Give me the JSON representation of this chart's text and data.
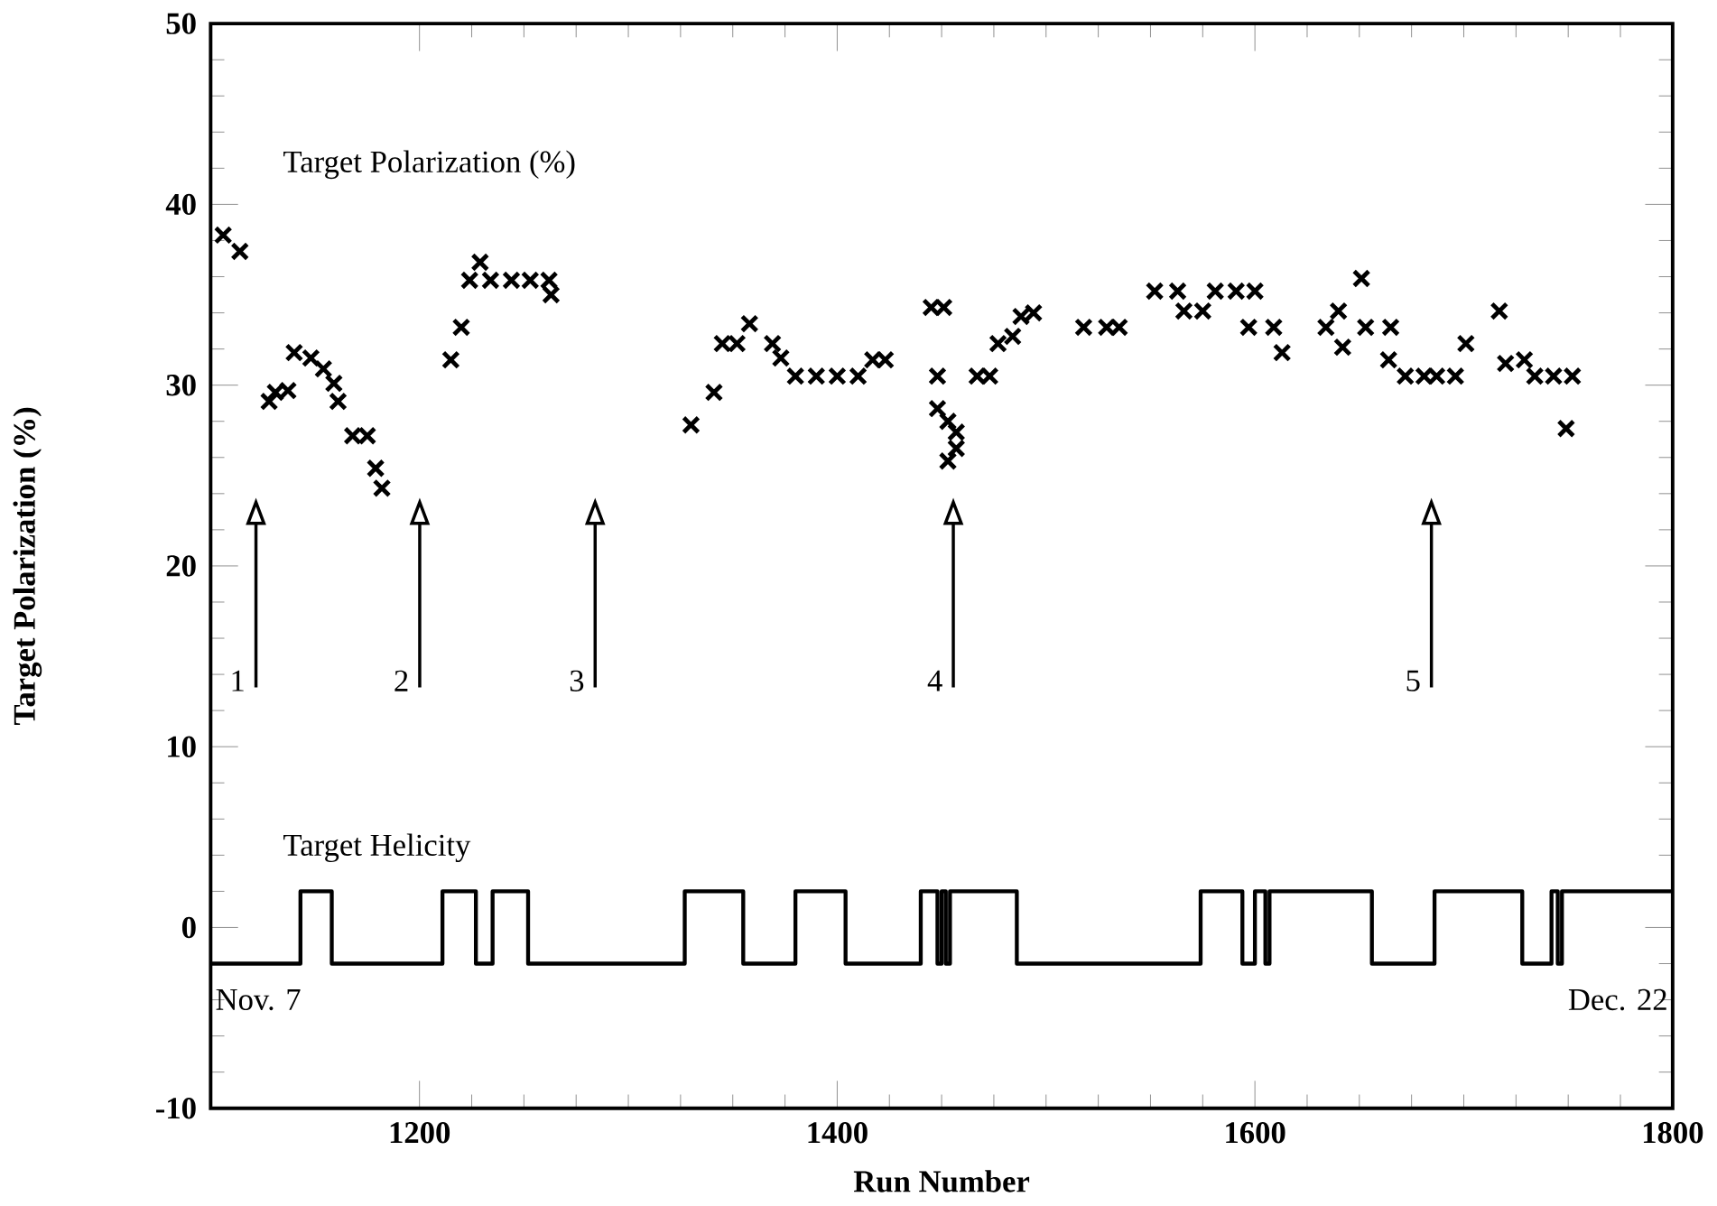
{
  "chart_data": {
    "type": "scatter",
    "xlabel": "Run Number",
    "ylabel": "Target Polarization (%)",
    "xlim": [
      1100,
      1800
    ],
    "xticks": [
      1200,
      1400,
      1600,
      1800
    ],
    "ylim": [
      -10,
      50
    ],
    "yticks": [
      -10,
      0,
      10,
      20,
      30,
      40,
      50
    ],
    "marker": "cross",
    "legend": false,
    "grid": false,
    "series": [
      {
        "name": "Target Polarization (%)",
        "color": "#000000",
        "x": [
          1106,
          1114,
          1128,
          1131,
          1137,
          1140,
          1148,
          1154,
          1159,
          1161,
          1168,
          1175,
          1179,
          1182,
          1215,
          1220,
          1224,
          1229,
          1234,
          1244,
          1253,
          1262,
          1263,
          1330,
          1341,
          1345,
          1352,
          1358,
          1369,
          1373,
          1380,
          1390,
          1400,
          1410,
          1417,
          1423,
          1445,
          1451,
          1448,
          1448,
          1453,
          1457,
          1453,
          1457,
          1467,
          1473,
          1477,
          1484,
          1488,
          1494,
          1518,
          1529,
          1535,
          1552,
          1563,
          1566,
          1575,
          1581,
          1591,
          1600,
          1597,
          1609,
          1613,
          1634,
          1640,
          1642,
          1651,
          1653,
          1665,
          1664,
          1672,
          1681,
          1687,
          1696,
          1701,
          1717,
          1720,
          1729,
          1734,
          1743,
          1752,
          1749
        ],
        "values": [
          38.3,
          37.4,
          29.1,
          29.6,
          29.7,
          31.8,
          31.5,
          30.9,
          30.1,
          29.1,
          27.2,
          27.2,
          25.4,
          24.3,
          31.4,
          33.2,
          35.8,
          36.8,
          35.8,
          35.8,
          35.8,
          35.8,
          35.0,
          27.8,
          29.6,
          32.3,
          32.3,
          33.4,
          32.3,
          31.5,
          30.5,
          30.5,
          30.5,
          30.5,
          31.4,
          31.4,
          34.3,
          34.3,
          30.5,
          28.7,
          28.0,
          27.4,
          25.8,
          26.5,
          30.5,
          30.5,
          32.3,
          32.7,
          33.8,
          34.0,
          33.2,
          33.2,
          33.2,
          35.2,
          35.2,
          34.1,
          34.1,
          35.2,
          35.2,
          35.2,
          33.2,
          33.2,
          31.8,
          33.2,
          34.1,
          32.1,
          35.9,
          33.2,
          33.2,
          31.4,
          30.5,
          30.5,
          30.5,
          30.5,
          32.3,
          34.1,
          31.2,
          31.4,
          30.5,
          30.5,
          30.5,
          27.6
        ]
      },
      {
        "name": "Target Helicity",
        "type": "step",
        "color": "#000000",
        "marker": "none",
        "x": [
          1100,
          1143,
          1158,
          1211,
          1227,
          1235,
          1252,
          1327,
          1355,
          1380,
          1404,
          1440,
          1448,
          1450,
          1452,
          1454,
          1486,
          1574,
          1594,
          1600,
          1605,
          1607,
          1656,
          1686,
          1728,
          1742,
          1745,
          1747,
          1800
        ],
        "values": [
          -2,
          2,
          -2,
          2,
          -2,
          2,
          -2,
          2,
          -2,
          2,
          -2,
          2,
          -2,
          2,
          -2,
          2,
          -2,
          2,
          -2,
          2,
          -2,
          2,
          -2,
          2,
          -2,
          2,
          -2,
          2,
          2
        ]
      }
    ],
    "annotations": [
      "1",
      "2",
      "3",
      "4",
      "5",
      "Nov. 7",
      "Dec. 22"
    ]
  }
}
